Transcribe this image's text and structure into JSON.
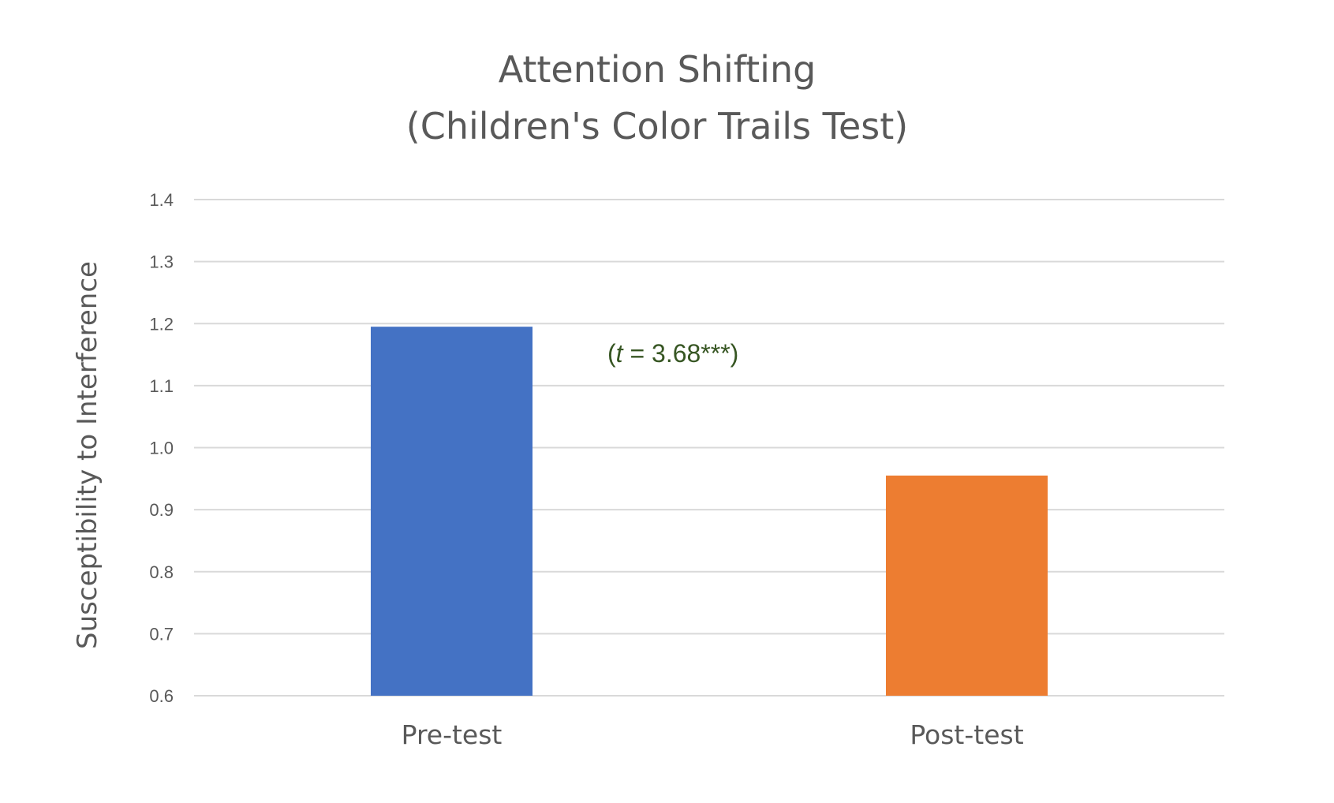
{
  "chart_data": {
    "type": "bar",
    "title_lines": [
      "Attention Shifting",
      "(Children's Color Trails Test)"
    ],
    "ylabel": "Susceptibility to Interference",
    "xlabel": "",
    "categories": [
      "Pre-test",
      "Post-test"
    ],
    "values": [
      1.195,
      0.955
    ],
    "colors": [
      "#4472C4",
      "#ED7D31"
    ],
    "ylim": [
      0.6,
      1.4
    ],
    "yticks": [
      "0.6",
      "0.7",
      "0.8",
      "0.9",
      "1.0",
      "1.1",
      "1.2",
      "1.3",
      "1.4"
    ],
    "grid": true,
    "legend": "none",
    "annotation": {
      "open": "(",
      "italic": "t",
      "rest": " = 3.68***)"
    }
  }
}
